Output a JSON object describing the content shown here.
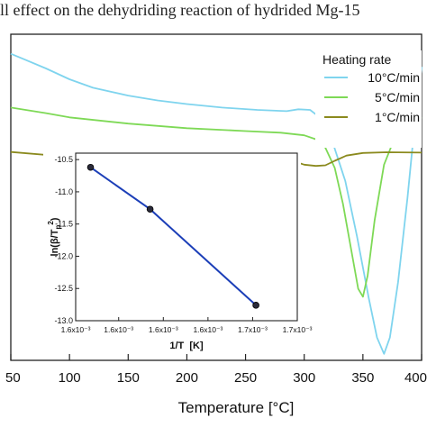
{
  "caption_fragment": "ll effect on the dehydriding reaction of hydrided Mg-15",
  "chart_data": [
    {
      "type": "line",
      "xlabel": "Temperature [°C]",
      "ylabel": "",
      "xlim": [
        50,
        400
      ],
      "x_ticks": [
        "50",
        "100",
        "150",
        "200",
        "250",
        "300",
        "350",
        "400"
      ],
      "y_ticks_visible": false,
      "legend_title": "Heating rate",
      "legend_position": "top-right",
      "series": [
        {
          "name": "10°C/min",
          "color": "#7fd4ee",
          "points": [
            [
              50,
              0.94
            ],
            [
              60,
              0.925
            ],
            [
              80,
              0.895
            ],
            [
              100,
              0.862
            ],
            [
              120,
              0.836
            ],
            [
              150,
              0.812
            ],
            [
              175,
              0.797
            ],
            [
              200,
              0.786
            ],
            [
              230,
              0.775
            ],
            [
              260,
              0.768
            ],
            [
              285,
              0.764
            ],
            [
              295,
              0.77
            ],
            [
              305,
              0.768
            ],
            [
              315,
              0.74
            ],
            [
              325,
              0.66
            ],
            [
              335,
              0.55
            ],
            [
              345,
              0.38
            ],
            [
              355,
              0.19
            ],
            [
              362,
              0.07
            ],
            [
              368,
              0.02
            ],
            [
              373,
              0.07
            ],
            [
              380,
              0.24
            ],
            [
              388,
              0.5
            ],
            [
              394,
              0.72
            ],
            [
              400,
              0.9
            ]
          ]
        },
        {
          "name": "5°C/min",
          "color": "#7ed956",
          "points": [
            [
              50,
              0.775
            ],
            [
              80,
              0.758
            ],
            [
              100,
              0.745
            ],
            [
              150,
              0.726
            ],
            [
              200,
              0.712
            ],
            [
              250,
              0.703
            ],
            [
              280,
              0.698
            ],
            [
              300,
              0.69
            ],
            [
              310,
              0.678
            ],
            [
              318,
              0.652
            ],
            [
              326,
              0.59
            ],
            [
              333,
              0.48
            ],
            [
              340,
              0.34
            ],
            [
              346,
              0.22
            ],
            [
              350,
              0.195
            ],
            [
              354,
              0.26
            ],
            [
              360,
              0.43
            ],
            [
              368,
              0.6
            ],
            [
              378,
              0.69
            ],
            [
              388,
              0.722
            ],
            [
              396,
              0.74
            ],
            [
              400,
              0.745
            ]
          ]
        },
        {
          "name": "1°C/min",
          "color": "#8b8a1e",
          "points": [
            [
              50,
              0.639
            ],
            [
              100,
              0.624
            ],
            [
              150,
              0.625
            ],
            [
              200,
              0.626
            ],
            [
              250,
              0.627
            ],
            [
              270,
              0.628
            ],
            [
              280,
              0.624
            ],
            [
              290,
              0.612
            ],
            [
              300,
              0.6
            ],
            [
              310,
              0.596
            ],
            [
              318,
              0.598
            ],
            [
              326,
              0.612
            ],
            [
              336,
              0.628
            ],
            [
              350,
              0.636
            ],
            [
              370,
              0.638
            ],
            [
              400,
              0.637
            ]
          ]
        }
      ]
    },
    {
      "type": "scatter",
      "xlabel": "1/T  [K]",
      "ylabel": "ln(β/Tp²)",
      "ylabel_main": "ln(β/T",
      "ylabel_sub": "p",
      "ylabel_sup": "2",
      "ylabel_end": ")",
      "xlim": [
        0.001578,
        0.001712
      ],
      "ylim": [
        -13.0,
        -10.4
      ],
      "x_ticks": [
        {
          "v": 0.001578,
          "label": "1.6x10⁻³"
        },
        {
          "v": 0.001604,
          "label": "1.6x10⁻³"
        },
        {
          "v": 0.001631,
          "label": "1.6x10⁻³"
        },
        {
          "v": 0.001658,
          "label": "1.6x10⁻³"
        },
        {
          "v": 0.001685,
          "label": "1.7x10⁻³"
        },
        {
          "v": 0.001712,
          "label": "1.7x10⁻³"
        }
      ],
      "y_ticks": [
        {
          "v": -10.5,
          "label": "-10.5"
        },
        {
          "v": -11.0,
          "label": "-11.0"
        },
        {
          "v": -11.5,
          "label": "-11.5"
        },
        {
          "v": -12.0,
          "label": "-12.0"
        },
        {
          "v": -12.5,
          "label": "-12.5"
        },
        {
          "v": -13.0,
          "label": "-13.0"
        }
      ],
      "points": [
        [
          0.001587,
          -10.62
        ],
        [
          0.001623,
          -11.27
        ],
        [
          0.001687,
          -12.76
        ]
      ],
      "fit_line": true,
      "line_color": "#1c3fb8",
      "marker_color": "#2a2a3a"
    }
  ]
}
